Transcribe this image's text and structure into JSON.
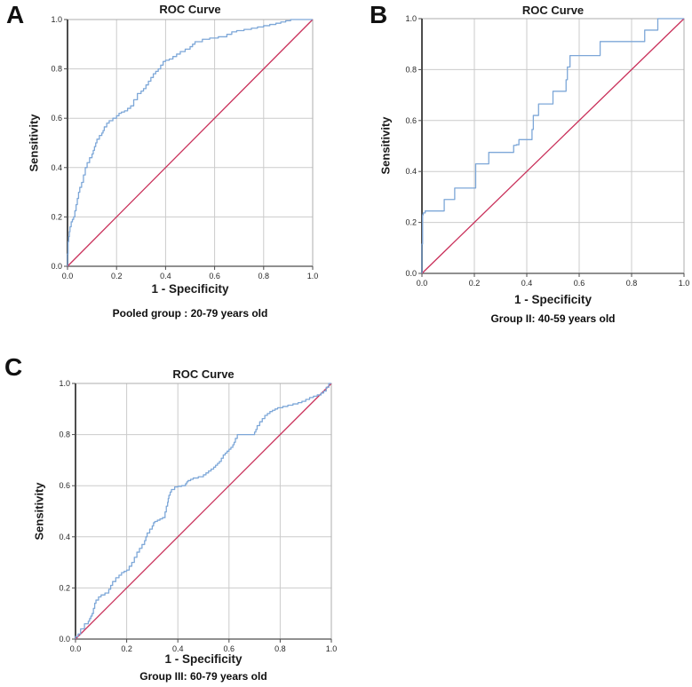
{
  "figure": {
    "background": "#ffffff",
    "curve_color": "#7da7d8",
    "reference_color": "#c9305a",
    "grid_color": "#cbcbcb"
  },
  "chart_data": [
    {
      "type": "line",
      "panel_label": "A",
      "title": "ROC Curve",
      "xlabel": "1 - Specificity",
      "ylabel": "Sensitivity",
      "caption": "Pooled group : 20-79 years old",
      "xlim": [
        0,
        1
      ],
      "ylim": [
        0,
        1
      ],
      "xticks": [
        "0.0",
        "0.2",
        "0.4",
        "0.6",
        "0.8",
        "1.0"
      ],
      "yticks": [
        "0.0",
        "0.2",
        "0.4",
        "0.6",
        "0.8",
        "1.0"
      ],
      "grid": true,
      "legend": "none",
      "grid_color": "#cbcbcb",
      "series": [
        {
          "name": "roc-curve",
          "color": "#7da7d8",
          "style": "step",
          "points": [
            [
              0,
              0
            ],
            [
              0.005,
              0.1
            ],
            [
              0.01,
              0.14
            ],
            [
              0.02,
              0.18
            ],
            [
              0.03,
              0.2
            ],
            [
              0.04,
              0.25
            ],
            [
              0.05,
              0.3
            ],
            [
              0.065,
              0.34
            ],
            [
              0.08,
              0.4
            ],
            [
              0.1,
              0.44
            ],
            [
              0.11,
              0.47
            ],
            [
              0.12,
              0.5
            ],
            [
              0.14,
              0.53
            ],
            [
              0.15,
              0.55
            ],
            [
              0.17,
              0.58
            ],
            [
              0.2,
              0.6
            ],
            [
              0.22,
              0.62
            ],
            [
              0.245,
              0.63
            ],
            [
              0.27,
              0.65
            ],
            [
              0.3,
              0.7
            ],
            [
              0.32,
              0.72
            ],
            [
              0.34,
              0.75
            ],
            [
              0.36,
              0.78
            ],
            [
              0.38,
              0.8
            ],
            [
              0.4,
              0.83
            ],
            [
              0.43,
              0.84
            ],
            [
              0.46,
              0.86
            ],
            [
              0.5,
              0.88
            ],
            [
              0.52,
              0.9
            ],
            [
              0.58,
              0.92
            ],
            [
              0.65,
              0.93
            ],
            [
              0.69,
              0.95
            ],
            [
              0.75,
              0.96
            ],
            [
              0.8,
              0.97
            ],
            [
              0.85,
              0.98
            ],
            [
              0.89,
              0.99
            ],
            [
              0.93,
              1.0
            ],
            [
              1.0,
              1.0
            ]
          ]
        },
        {
          "name": "reference-line",
          "color": "#c9305a",
          "style": "straight",
          "points": [
            [
              0,
              0
            ],
            [
              1,
              1
            ]
          ]
        }
      ]
    },
    {
      "type": "line",
      "panel_label": "B",
      "title": "ROC Curve",
      "xlabel": "1 - Specificity",
      "ylabel": "Sensitivity",
      "caption": "Group II: 40-59 years old",
      "xlim": [
        0,
        1
      ],
      "ylim": [
        0,
        1
      ],
      "xticks": [
        "0.0",
        "0.2",
        "0.4",
        "0.6",
        "0.8",
        "1.0"
      ],
      "yticks": [
        "0.0",
        "0.2",
        "0.4",
        "0.6",
        "0.8",
        "1.0"
      ],
      "grid": true,
      "legend": "none",
      "grid_color": "#cbcbcb",
      "series": [
        {
          "name": "roc-curve",
          "color": "#7da7d8",
          "style": "step",
          "points": [
            [
              0,
              0
            ],
            [
              0.005,
              0.23
            ],
            [
              0.02,
              0.245
            ],
            [
              0.085,
              0.245
            ],
            [
              0.085,
              0.29
            ],
            [
              0.125,
              0.29
            ],
            [
              0.125,
              0.335
            ],
            [
              0.205,
              0.335
            ],
            [
              0.205,
              0.43
            ],
            [
              0.255,
              0.43
            ],
            [
              0.255,
              0.475
            ],
            [
              0.35,
              0.475
            ],
            [
              0.35,
              0.5
            ],
            [
              0.37,
              0.505
            ],
            [
              0.37,
              0.525
            ],
            [
              0.42,
              0.525
            ],
            [
              0.42,
              0.565
            ],
            [
              0.425,
              0.565
            ],
            [
              0.425,
              0.62
            ],
            [
              0.445,
              0.62
            ],
            [
              0.445,
              0.665
            ],
            [
              0.5,
              0.665
            ],
            [
              0.5,
              0.715
            ],
            [
              0.55,
              0.715
            ],
            [
              0.55,
              0.76
            ],
            [
              0.555,
              0.76
            ],
            [
              0.555,
              0.81
            ],
            [
              0.565,
              0.81
            ],
            [
              0.565,
              0.855
            ],
            [
              0.68,
              0.855
            ],
            [
              0.68,
              0.91
            ],
            [
              0.85,
              0.91
            ],
            [
              0.85,
              0.955
            ],
            [
              0.9,
              0.955
            ],
            [
              0.9,
              1.0
            ],
            [
              1.0,
              1.0
            ]
          ]
        },
        {
          "name": "reference-line",
          "color": "#c9305a",
          "style": "straight",
          "points": [
            [
              0,
              0
            ],
            [
              1,
              1
            ]
          ]
        }
      ]
    },
    {
      "type": "line",
      "panel_label": "C",
      "title": "ROC Curve",
      "xlabel": "1 - Specificity",
      "ylabel": "Sensitivity",
      "caption": "Group III: 60-79 years old",
      "xlim": [
        0,
        1
      ],
      "ylim": [
        0,
        1
      ],
      "xticks": [
        "0.0",
        "0.2",
        "0.4",
        "0.6",
        "0.8",
        "1.0"
      ],
      "yticks": [
        "0.0",
        "0.2",
        "0.4",
        "0.6",
        "0.8",
        "1.0"
      ],
      "grid": true,
      "legend": "none",
      "grid_color": "#cbcbcb",
      "series": [
        {
          "name": "roc-curve",
          "color": "#7da7d8",
          "style": "step",
          "points": [
            [
              0,
              0
            ],
            [
              0.02,
              0.02
            ],
            [
              0.05,
              0.06
            ],
            [
              0.06,
              0.08
            ],
            [
              0.07,
              0.1
            ],
            [
              0.08,
              0.14
            ],
            [
              0.1,
              0.165
            ],
            [
              0.13,
              0.18
            ],
            [
              0.145,
              0.21
            ],
            [
              0.17,
              0.24
            ],
            [
              0.19,
              0.26
            ],
            [
              0.21,
              0.27
            ],
            [
              0.23,
              0.3
            ],
            [
              0.25,
              0.34
            ],
            [
              0.27,
              0.37
            ],
            [
              0.28,
              0.4
            ],
            [
              0.3,
              0.43
            ],
            [
              0.31,
              0.455
            ],
            [
              0.33,
              0.465
            ],
            [
              0.35,
              0.475
            ],
            [
              0.36,
              0.52
            ],
            [
              0.365,
              0.55
            ],
            [
              0.375,
              0.575
            ],
            [
              0.4,
              0.595
            ],
            [
              0.43,
              0.6
            ],
            [
              0.44,
              0.615
            ],
            [
              0.46,
              0.625
            ],
            [
              0.5,
              0.635
            ],
            [
              0.52,
              0.65
            ],
            [
              0.54,
              0.665
            ],
            [
              0.555,
              0.68
            ],
            [
              0.57,
              0.695
            ],
            [
              0.585,
              0.72
            ],
            [
              0.6,
              0.735
            ],
            [
              0.615,
              0.75
            ],
            [
              0.625,
              0.77
            ],
            [
              0.64,
              0.8
            ],
            [
              0.7,
              0.8
            ],
            [
              0.71,
              0.82
            ],
            [
              0.73,
              0.85
            ],
            [
              0.75,
              0.875
            ],
            [
              0.77,
              0.89
            ],
            [
              0.79,
              0.9
            ],
            [
              0.83,
              0.91
            ],
            [
              0.87,
              0.92
            ],
            [
              0.9,
              0.93
            ],
            [
              0.93,
              0.945
            ],
            [
              0.96,
              0.955
            ],
            [
              0.98,
              0.97
            ],
            [
              1.0,
              1.0
            ]
          ]
        },
        {
          "name": "reference-line",
          "color": "#c9305a",
          "style": "straight",
          "points": [
            [
              0,
              0
            ],
            [
              1,
              1
            ]
          ]
        }
      ]
    }
  ]
}
